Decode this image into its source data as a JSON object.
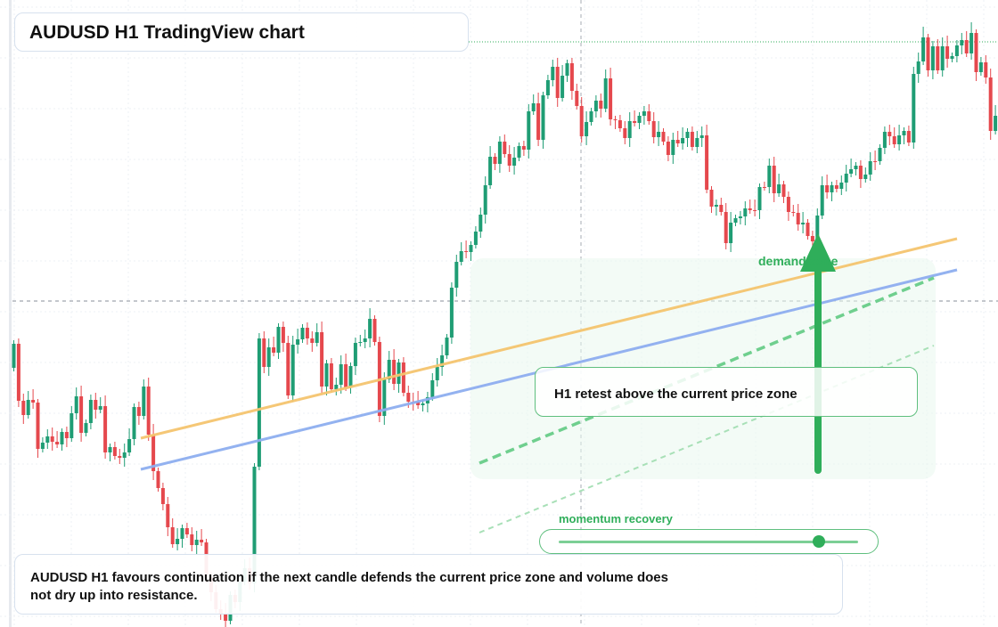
{
  "header": {
    "title": "AUDUSD H1 TradingView chart"
  },
  "annotations": {
    "demand_zone_label": "demand zone",
    "retest_note": "H1 retest above the current price zone",
    "momentum_label": "momentum recovery",
    "momentum_level": 0.87,
    "summary": "AUDUSD H1 favours continuation if the next candle defends the current price zone and volume does not dry up into resistance."
  },
  "colors": {
    "bull": "#1f9d74",
    "bear": "#e5484d",
    "orange_line": "#f5c56f",
    "blue_line": "#8eaef0",
    "accent_green": "#2fae5a"
  },
  "chart_data": {
    "type": "candlestick",
    "symbol": "AUDUSD",
    "timeframe": "H1",
    "grid": true,
    "candles": [
      [
        413,
        386
      ],
      [
        386,
        450
      ],
      [
        450,
        466
      ],
      [
        466,
        449
      ],
      [
        449,
        452
      ],
      [
        452,
        504
      ],
      [
        504,
        497
      ],
      [
        497,
        490
      ],
      [
        490,
        496
      ],
      [
        496,
        499
      ],
      [
        499,
        485
      ],
      [
        485,
        492
      ],
      [
        492,
        464
      ],
      [
        464,
        445
      ],
      [
        445,
        486
      ],
      [
        486,
        475
      ],
      [
        475,
        449
      ],
      [
        449,
        460
      ],
      [
        460,
        456
      ],
      [
        456,
        508
      ],
      [
        508,
        502
      ],
      [
        502,
        512
      ],
      [
        512,
        514
      ],
      [
        514,
        508
      ],
      [
        508,
        493
      ],
      [
        493,
        457
      ],
      [
        457,
        467
      ],
      [
        467,
        434
      ],
      [
        434,
        488
      ],
      [
        488,
        529
      ],
      [
        529,
        548
      ],
      [
        548,
        566
      ],
      [
        566,
        592
      ],
      [
        592,
        611
      ],
      [
        611,
        605
      ],
      [
        605,
        593
      ],
      [
        593,
        600
      ],
      [
        600,
        612
      ],
      [
        612,
        606
      ],
      [
        606,
        609
      ],
      [
        609,
        648
      ],
      [
        648,
        665
      ],
      [
        665,
        684
      ],
      [
        684,
        689
      ],
      [
        689,
        697
      ],
      [
        697,
        668
      ],
      [
        668,
        676
      ],
      [
        676,
        653
      ],
      [
        653,
        638
      ],
      [
        638,
        655
      ],
      [
        655,
        524
      ],
      [
        524,
        380
      ],
      [
        380,
        412
      ],
      [
        412,
        390
      ],
      [
        390,
        396
      ],
      [
        396,
        367
      ],
      [
        367,
        385
      ],
      [
        385,
        444
      ],
      [
        444,
        387
      ],
      [
        387,
        381
      ],
      [
        381,
        368
      ],
      [
        368,
        380
      ],
      [
        380,
        385
      ],
      [
        385,
        373
      ],
      [
        373,
        434
      ],
      [
        434,
        408
      ],
      [
        408,
        437
      ],
      [
        437,
        432
      ],
      [
        432,
        409
      ],
      [
        409,
        435
      ],
      [
        435,
        411
      ],
      [
        411,
        385
      ],
      [
        385,
        384
      ],
      [
        384,
        380
      ],
      [
        380,
        358
      ],
      [
        358,
        384
      ],
      [
        384,
        467
      ],
      [
        467,
        426
      ],
      [
        426,
        404
      ],
      [
        404,
        431
      ],
      [
        431,
        407
      ],
      [
        407,
        441
      ],
      [
        441,
        451
      ],
      [
        451,
        451
      ],
      [
        451,
        455
      ],
      [
        455,
        453
      ],
      [
        453,
        446
      ],
      [
        446,
        427
      ],
      [
        427,
        412
      ],
      [
        412,
        399
      ],
      [
        399,
        379
      ],
      [
        379,
        323
      ],
      [
        323,
        294
      ],
      [
        294,
        282
      ],
      [
        282,
        283
      ],
      [
        283,
        275
      ],
      [
        275,
        260
      ],
      [
        260,
        241
      ],
      [
        241,
        208
      ],
      [
        208,
        176
      ],
      [
        176,
        184
      ],
      [
        184,
        159
      ],
      [
        159,
        173
      ],
      [
        173,
        186
      ],
      [
        186,
        177
      ],
      [
        177,
        164
      ],
      [
        164,
        168
      ],
      [
        168,
        125
      ],
      [
        125,
        116
      ],
      [
        116,
        157
      ],
      [
        157,
        107
      ],
      [
        107,
        90
      ],
      [
        90,
        75
      ],
      [
        75,
        110
      ],
      [
        110,
        85
      ],
      [
        85,
        71
      ],
      [
        71,
        102
      ],
      [
        102,
        119
      ],
      [
        119,
        153
      ],
      [
        153,
        137
      ],
      [
        137,
        125
      ],
      [
        125,
        113
      ],
      [
        113,
        122
      ],
      [
        122,
        88
      ],
      [
        88,
        134
      ],
      [
        134,
        135
      ],
      [
        135,
        144
      ],
      [
        144,
        155
      ],
      [
        155,
        136
      ],
      [
        136,
        138
      ],
      [
        138,
        130
      ],
      [
        130,
        125
      ],
      [
        125,
        136
      ],
      [
        136,
        154
      ],
      [
        154,
        148
      ],
      [
        148,
        159
      ],
      [
        159,
        174
      ],
      [
        174,
        157
      ],
      [
        157,
        161
      ],
      [
        161,
        155
      ],
      [
        155,
        148
      ],
      [
        148,
        165
      ],
      [
        165,
        155
      ],
      [
        155,
        152
      ],
      [
        152,
        213
      ],
      [
        213,
        232
      ],
      [
        232,
        230
      ],
      [
        230,
        238
      ],
      [
        238,
        273
      ],
      [
        273,
        250
      ],
      [
        250,
        245
      ],
      [
        245,
        243
      ],
      [
        243,
        234
      ],
      [
        234,
        236
      ],
      [
        236,
        236
      ],
      [
        236,
        210
      ],
      [
        210,
        210
      ],
      [
        210,
        186
      ],
      [
        186,
        217
      ],
      [
        217,
        207
      ],
      [
        207,
        221
      ],
      [
        221,
        238
      ],
      [
        238,
        239
      ],
      [
        239,
        252
      ],
      [
        252,
        250
      ],
      [
        250,
        265
      ],
      [
        265,
        271
      ],
      [
        271,
        242
      ],
      [
        242,
        208
      ],
      [
        208,
        216
      ],
      [
        216,
        208
      ],
      [
        208,
        212
      ],
      [
        212,
        205
      ],
      [
        205,
        195
      ],
      [
        195,
        190
      ],
      [
        190,
        186
      ],
      [
        186,
        201
      ],
      [
        201,
        196
      ],
      [
        196,
        181
      ],
      [
        181,
        181
      ],
      [
        181,
        166
      ],
      [
        166,
        148
      ],
      [
        148,
        153
      ],
      [
        153,
        162
      ],
      [
        162,
        152
      ],
      [
        152,
        147
      ],
      [
        147,
        160
      ],
      [
        160,
        83
      ],
      [
        83,
        69
      ],
      [
        69,
        42
      ],
      [
        42,
        79
      ],
      [
        79,
        52
      ],
      [
        52,
        79
      ],
      [
        79,
        52
      ],
      [
        52,
        66
      ],
      [
        66,
        63
      ],
      [
        63,
        51
      ],
      [
        51,
        45
      ],
      [
        45,
        60
      ],
      [
        60,
        37
      ],
      [
        37,
        81
      ],
      [
        81,
        70
      ],
      [
        70,
        87
      ],
      [
        87,
        147
      ],
      [
        147,
        130
      ],
      [
        130,
        126
      ],
      [
        126,
        112
      ],
      [
        112,
        100
      ],
      [
        100,
        104
      ],
      [
        104,
        101
      ],
      [
        101,
        105
      ],
      [
        105,
        84
      ],
      [
        84,
        62
      ],
      [
        62,
        46
      ]
    ],
    "overlay_lines": [
      "orange trendline",
      "blue trendline",
      "green dashed projection",
      "light green dashed projection"
    ],
    "horizontal_levels": [
      "dashed current price line",
      "dotted upper resistance line"
    ]
  }
}
